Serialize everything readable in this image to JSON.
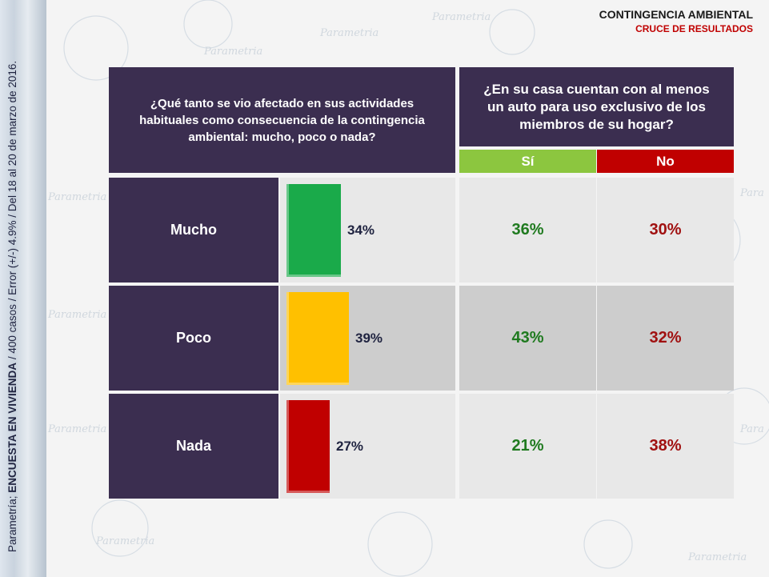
{
  "header": {
    "title": "CONTINGENCIA AMBIENTAL",
    "subtitle": "CRUCE DE RESULTADOS"
  },
  "footnote": {
    "prefix": "Parametría; ",
    "survey": "ENCUESTA EN VIVIENDA",
    "details": " / 400 casos / Error (+/-) 4.9% / Del 18 al 20 de marzo de 2016."
  },
  "question_left": "¿Qué tanto se vio afectado en sus actividades habituales como consecuencia de la contingencia ambiental: mucho, poco o nada?",
  "question_right": "¿En su casa cuentan con al menos un auto para uso exclusivo de los miembros de su hogar?",
  "columns": {
    "si": "Sí",
    "no": "No"
  },
  "colors": {
    "mucho": "#1aaa4a",
    "poco": "#ffc000",
    "nada": "#c00000",
    "panel": "#3b2e50"
  },
  "chart_data": {
    "type": "bar",
    "categories": [
      "Mucho",
      "Poco",
      "Nada"
    ],
    "values": [
      34,
      39,
      27
    ],
    "labels": [
      "34%",
      "39%",
      "27%"
    ],
    "cross_table": {
      "columns": [
        "Sí",
        "No"
      ],
      "rows": [
        {
          "category": "Mucho",
          "si": "36%",
          "no": "30%"
        },
        {
          "category": "Poco",
          "si": "43%",
          "no": "32%"
        },
        {
          "category": "Nada",
          "si": "21%",
          "no": "38%"
        }
      ]
    }
  }
}
